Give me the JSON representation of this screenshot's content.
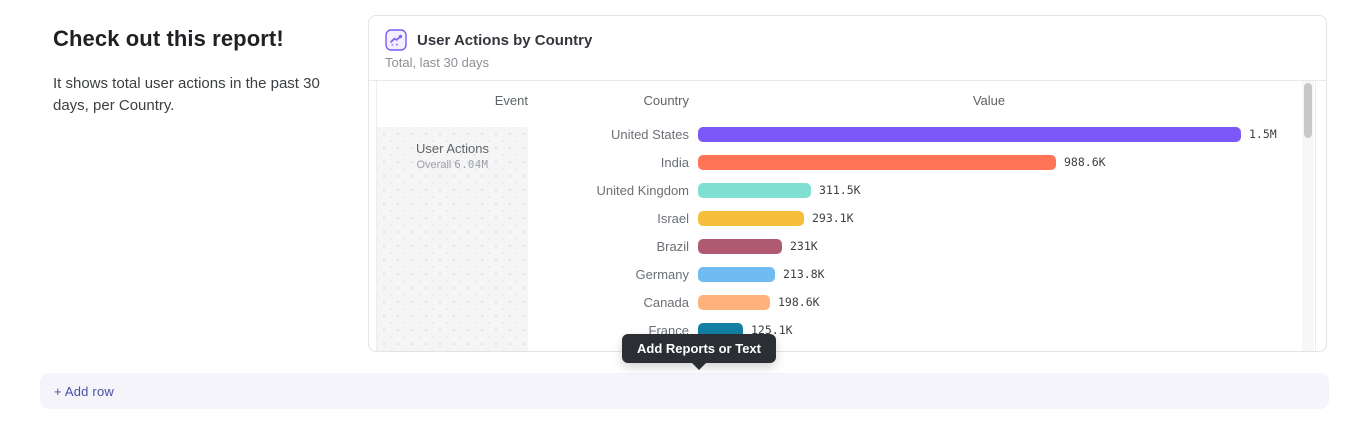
{
  "intro": {
    "heading": "Check out this report!",
    "description": "It shows total user actions in the past 30 days, per Country."
  },
  "report_card": {
    "icon": "line-chart-icon",
    "title": "User Actions by Country",
    "subtitle": "Total, last 30 days",
    "columns": {
      "event": "Event",
      "country": "Country",
      "value": "Value"
    },
    "event_cell": {
      "name": "User Actions",
      "overall_label": "Overall",
      "overall_value": "6.04M"
    }
  },
  "chart_data": {
    "type": "bar",
    "orientation": "horizontal",
    "categories": [
      "United States",
      "India",
      "United Kingdom",
      "Israel",
      "Brazil",
      "Germany",
      "Canada",
      "France"
    ],
    "values": [
      1500000,
      988600,
      311500,
      293100,
      231000,
      213800,
      198600,
      125100
    ],
    "value_labels": [
      "1.5M",
      "988.6K",
      "311.5K",
      "293.1K",
      "231K",
      "213.8K",
      "198.6K",
      "125.1K"
    ],
    "bar_colors": [
      "#7b58f7",
      "#ff7357",
      "#7fe0d2",
      "#f5bf3c",
      "#b05a72",
      "#6fbbf2",
      "#ffb17c",
      "#137fa5"
    ],
    "xlim": [
      0,
      1500000
    ],
    "title": "User Actions by Country",
    "xlabel": "Value",
    "ylabel": "Country",
    "legend": "none",
    "grid": false
  },
  "tooltip": {
    "label": "Add Reports or Text"
  },
  "add_row": {
    "label": "+ Add row"
  },
  "colors": {
    "accent_purple": "#7b58f7",
    "tooltip_bg": "#2b2e33",
    "add_row_bg": "#f5f4fb",
    "add_row_text": "#4b4fa1"
  }
}
